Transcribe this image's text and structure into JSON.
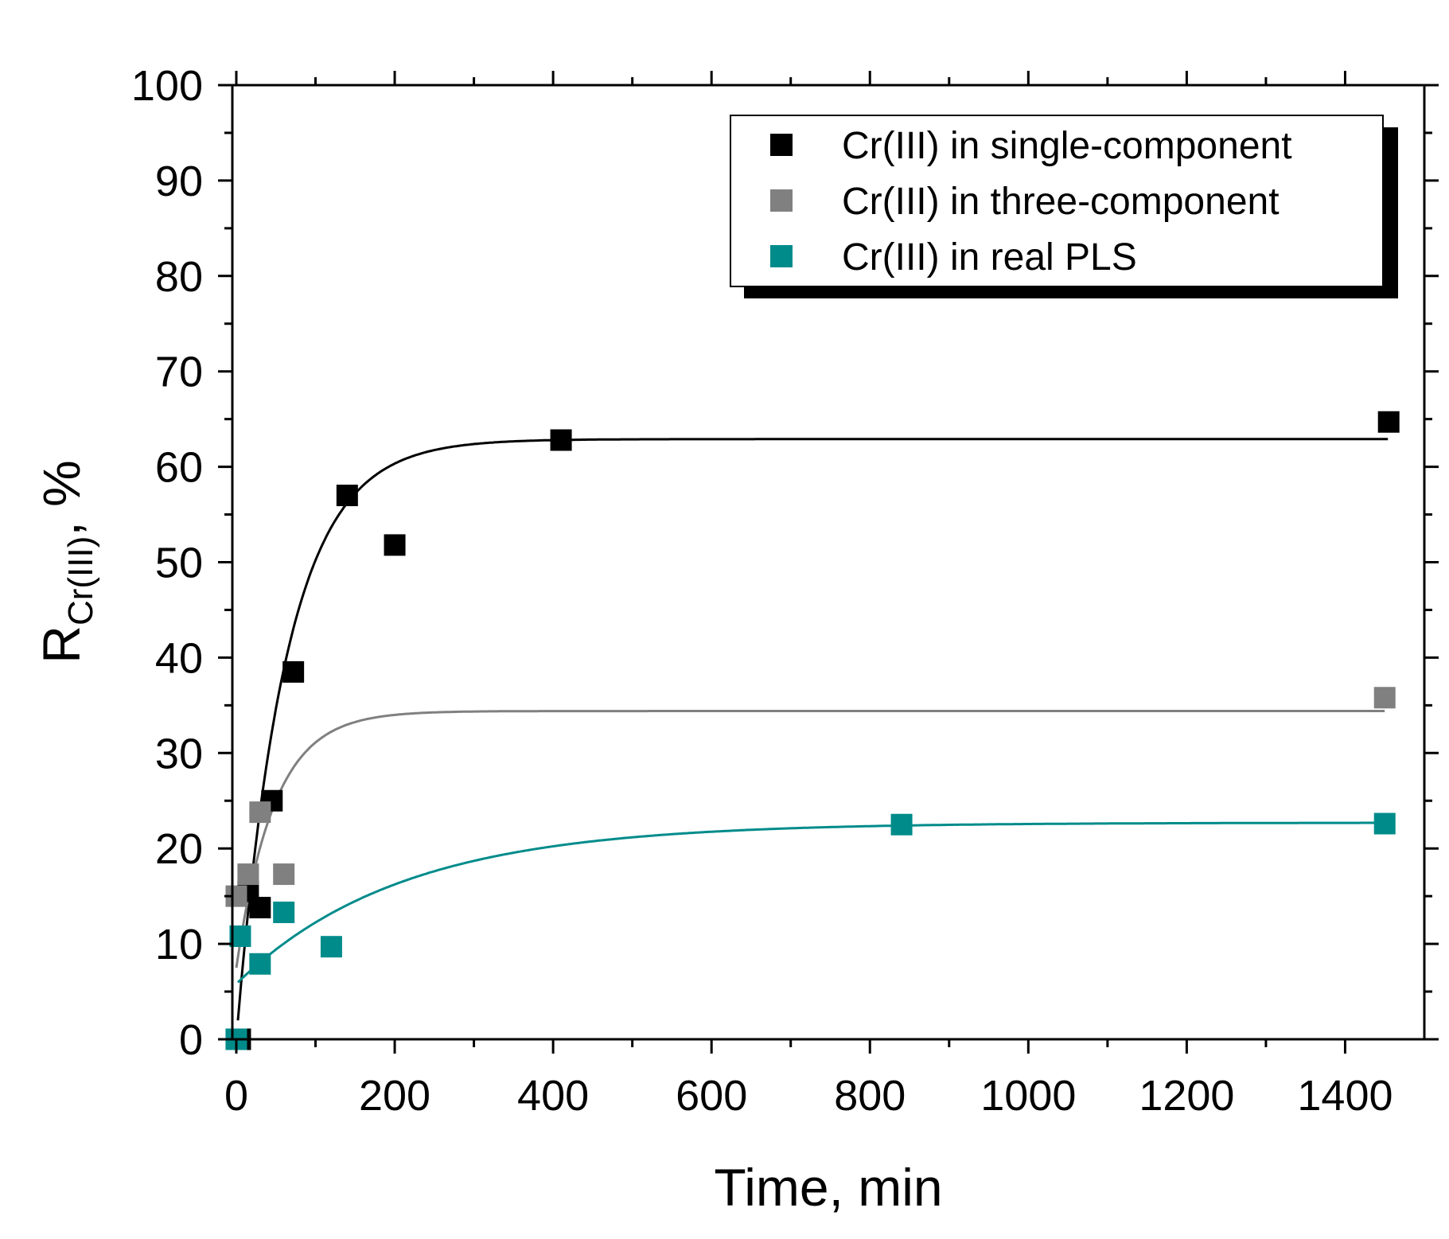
{
  "chart_data": {
    "type": "scatter",
    "title": "",
    "xlabel": "Time, min",
    "ylabel": {
      "main": "R",
      "subscript": "Cr(III)",
      "suffix": ", %"
    },
    "xlim": [
      -5,
      1500
    ],
    "ylim": [
      0,
      100
    ],
    "xticks": [
      0,
      200,
      400,
      600,
      800,
      1000,
      1200,
      1400
    ],
    "yticks": [
      0,
      10,
      20,
      30,
      40,
      50,
      60,
      70,
      80,
      90,
      100
    ],
    "legend_position": "top-right",
    "series": [
      {
        "name": "Cr(III) in single-component",
        "color": "#000000",
        "x": [
          0,
          5,
          15,
          30,
          45,
          72,
          140,
          200,
          410,
          1455
        ],
        "y": [
          0,
          0,
          15.5,
          13.8,
          25,
          38.5,
          57,
          51.8,
          62.8,
          64.7
        ],
        "fit": {
          "model": "exponential",
          "ymax": 62.9,
          "k": 0.016,
          "t0": 0,
          "y0": 0,
          "x_range": [
            2,
            1455
          ]
        }
      },
      {
        "name": "Cr(III) in three-component",
        "color": "#808080",
        "x": [
          0,
          15,
          30,
          60,
          1450
        ],
        "y": [
          15,
          17.3,
          23.8,
          17.3,
          35.8
        ],
        "fit": {
          "model": "exponential",
          "ymax": 34.4,
          "k": 0.021,
          "t0": 0,
          "y0": 7.5,
          "x_range": [
            0,
            1450
          ]
        }
      },
      {
        "name": "Cr(III) in real PLS",
        "color": "#008b8b",
        "x": [
          0,
          5,
          30,
          60,
          120,
          840,
          1450
        ],
        "y": [
          0,
          10.8,
          7.9,
          13.3,
          9.7,
          22.5,
          22.6
        ],
        "fit": {
          "model": "exponential",
          "ymax": 22.7,
          "k": 0.0048,
          "t0": 0,
          "y0": 5.8,
          "x_range": [
            2,
            1450
          ]
        }
      }
    ]
  }
}
